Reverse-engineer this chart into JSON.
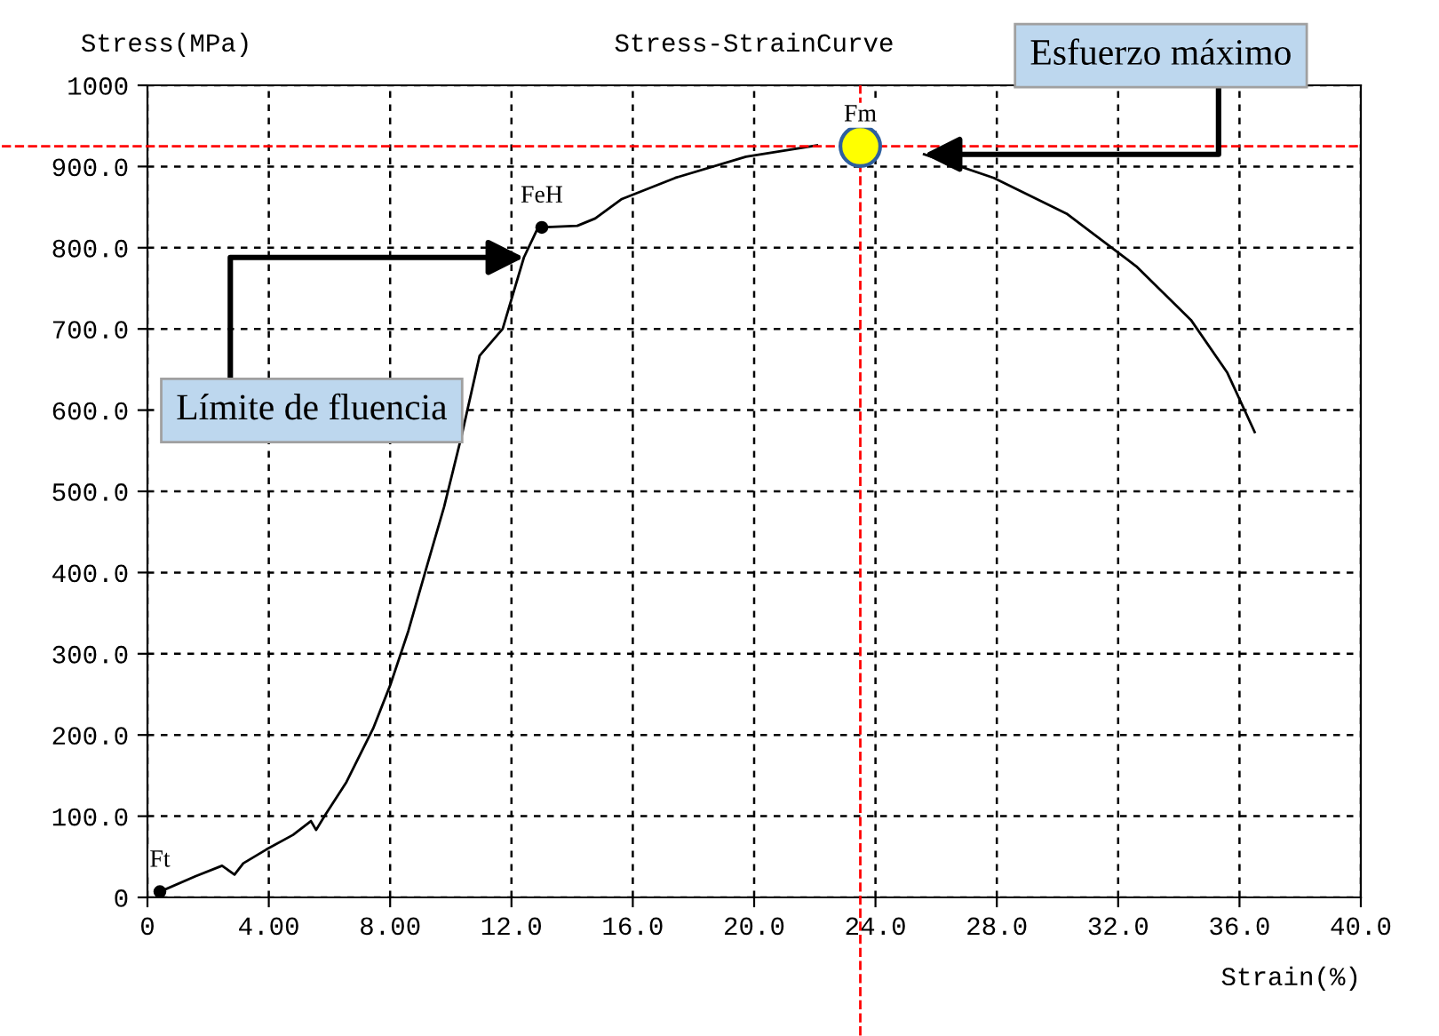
{
  "chart_data": {
    "type": "line",
    "title": "Stress-StrainCurve",
    "xlabel": "Strain(%)",
    "ylabel": "Stress(MPa)",
    "series": [
      {
        "color": "#000000",
        "x": [
          0.41,
          1.58,
          2.46,
          2.87,
          3.16,
          3.92,
          4.8,
          5.39,
          5.56,
          5.85,
          6.56,
          7.44,
          8.02,
          8.6,
          9.19,
          9.78,
          10.36,
          10.95,
          11.71,
          12.41,
          12.88,
          13.0,
          14.17,
          14.76,
          15.64,
          17.4,
          19.73,
          22.07,
          23.5,
          25.6,
          27.9,
          30.3,
          32.6,
          34.4,
          35.6,
          36.5
        ],
        "values": [
          7,
          26,
          39,
          28,
          42,
          59,
          77,
          94,
          83,
          101,
          142,
          208,
          263,
          328,
          405,
          481,
          569,
          667,
          700,
          788,
          825,
          825,
          827,
          836,
          860,
          886,
          912,
          926,
          null,
          915,
          886,
          842,
          777,
          711,
          646,
          573
        ]
      },
      {
        "type": "scatter",
        "color": "#000000",
        "x": [
          0.41,
          13.0
        ],
        "values": [
          7,
          825
        ]
      },
      {
        "type": "scatter",
        "color": "#ffff00",
        "x": [
          23.5
        ],
        "values": [
          925
        ]
      }
    ],
    "annotations": [
      {
        "text": "Ft",
        "x": 0.41,
        "y": 7
      },
      {
        "text": "FeH",
        "x": 13.0,
        "y": 825
      },
      {
        "text": "Fm",
        "x": 23.5,
        "y": 925
      },
      {
        "text": "Esfuerzo máximo",
        "x": 25.6,
        "y": 915
      },
      {
        "text": "Límite de fluencia",
        "x": 12.41,
        "y": 788
      }
    ],
    "ref_lines": [
      {
        "axis": "x",
        "value": 23.5,
        "color": "#ff0000",
        "line_style": "dashed"
      },
      {
        "axis": "y",
        "value": 925,
        "color": "#ff0000",
        "line_style": "dashed"
      }
    ],
    "xlim": [
      0,
      40
    ],
    "ylim": [
      0,
      1000
    ],
    "xticks": [
      0,
      {
        "value": 4,
        "label": "4.00"
      },
      {
        "value": 8,
        "label": "8.00"
      },
      {
        "value": 12,
        "label": "12.0"
      },
      {
        "value": 16,
        "label": "16.0"
      },
      {
        "value": 20,
        "label": "20.0"
      },
      {
        "value": 24,
        "label": "24.0"
      },
      {
        "value": 28,
        "label": "28.0"
      },
      {
        "value": 32,
        "label": "32.0"
      },
      {
        "value": 36,
        "label": "36.0"
      },
      {
        "value": 40,
        "label": "40.0"
      }
    ],
    "yticks": [
      0,
      {
        "value": 100,
        "label": "100.0"
      },
      {
        "value": 200,
        "label": "200.0"
      },
      {
        "value": 300,
        "label": "300.0"
      },
      {
        "value": 400,
        "label": "400.0"
      },
      {
        "value": 500,
        "label": "500.0"
      },
      {
        "value": 600,
        "label": "600.0"
      },
      {
        "value": 700,
        "label": "700.0"
      },
      {
        "value": 800,
        "label": "800.0"
      },
      {
        "value": 900,
        "label": "900.0"
      },
      1000
    ],
    "grid": true,
    "legend": false
  }
}
